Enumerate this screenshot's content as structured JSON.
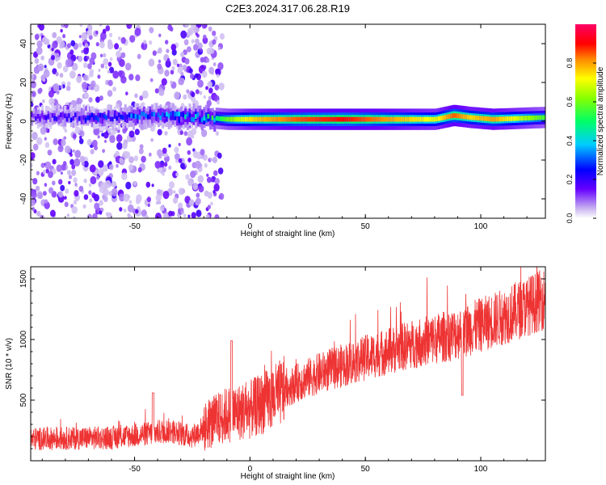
{
  "title": "C2E3.2024.317.06.28.R19",
  "chart_data": [
    {
      "type": "heatmap",
      "xlabel": "Height of straight line (km)",
      "ylabel": "Frequency (Hz)",
      "xlim": [
        -95,
        128
      ],
      "ylim": [
        -50,
        50
      ],
      "xticks": [
        -50,
        0,
        50,
        100
      ],
      "yticks": [
        -40,
        -20,
        0,
        20,
        40
      ],
      "colorbar": {
        "label": "Normalized spectral amplitude",
        "range": [
          0,
          1
        ],
        "ticks": [
          "0.0",
          "0.2",
          "0.4",
          "0.6",
          "0.8"
        ],
        "tick_values": [
          0,
          0.2,
          0.4,
          0.6,
          0.8
        ]
      },
      "band_profile": {
        "note_free": true,
        "x": [
          -95,
          -60,
          -40,
          -20,
          -10,
          0,
          20,
          40,
          60,
          80,
          88,
          95,
          105,
          128
        ],
        "center_hz": [
          2,
          2,
          3,
          2,
          1,
          1,
          1,
          1,
          1,
          1,
          3,
          2,
          1,
          2
        ],
        "amplitude": [
          0.15,
          0.22,
          0.3,
          0.35,
          0.6,
          0.75,
          0.85,
          0.9,
          0.8,
          0.7,
          0.85,
          0.75,
          0.8,
          0.55
        ]
      },
      "noise_region_x": [
        -95,
        -20
      ]
    },
    {
      "type": "line",
      "xlabel": "Height of straight line (km)",
      "ylabel": "SNR (10 * v/v)",
      "xlim": [
        -95,
        128
      ],
      "ylim": [
        0,
        1600
      ],
      "xticks": [
        -50,
        0,
        50,
        100
      ],
      "yticks": [
        500,
        1000,
        1500
      ],
      "color": "#ee3333",
      "trend": {
        "x": [
          -95,
          -60,
          -45,
          -35,
          -25,
          -18,
          -10,
          0,
          10,
          20,
          30,
          50,
          70,
          90,
          110,
          128
        ],
        "y": [
          180,
          190,
          220,
          250,
          200,
          300,
          380,
          420,
          520,
          640,
          720,
          850,
          960,
          1050,
          1190,
          1340
        ]
      },
      "spikes": [
        {
          "x": -42,
          "y": 560
        },
        {
          "x": -8,
          "y": 990
        },
        {
          "x": 92,
          "y": 1500
        },
        {
          "x": 92,
          "y": 540
        }
      ]
    }
  ]
}
